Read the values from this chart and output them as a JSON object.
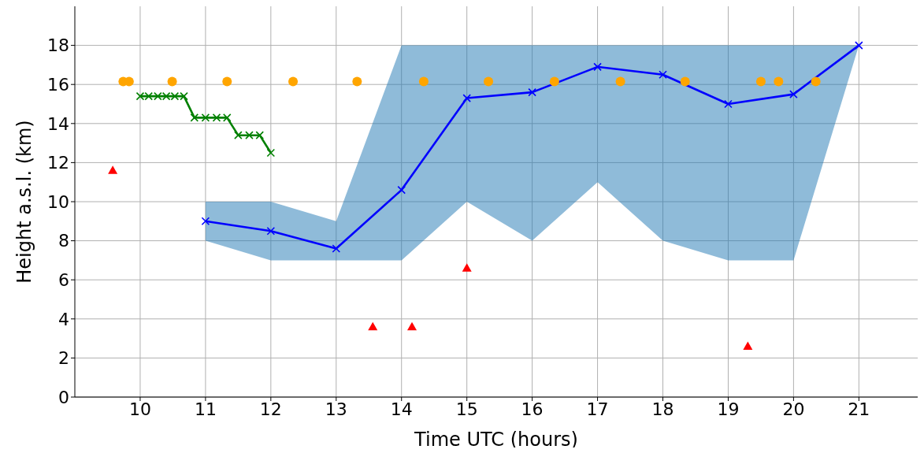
{
  "chart_data": {
    "type": "line",
    "xlabel": "Time UTC (hours)",
    "ylabel": "Height a.s.l. (km)",
    "xlim": [
      9,
      21.9
    ],
    "ylim": [
      0,
      20
    ],
    "xticks": [
      10,
      11,
      12,
      13,
      14,
      15,
      16,
      17,
      18,
      19,
      20,
      21
    ],
    "yticks": [
      0,
      2,
      4,
      6,
      8,
      10,
      12,
      14,
      16,
      18
    ],
    "grid": true,
    "series": [
      {
        "color": "#0000ff",
        "marker": "cross",
        "x": [
          11,
          12,
          13,
          14,
          15,
          16,
          17,
          18,
          19,
          20,
          21
        ],
        "values": [
          9.0,
          8.5,
          7.6,
          10.6,
          15.3,
          15.6,
          16.9,
          16.5,
          15.0,
          15.5,
          18.0
        ],
        "lower": [
          8,
          7,
          7,
          7,
          10,
          8,
          11,
          8,
          7,
          7,
          18
        ],
        "upper": [
          10,
          10,
          9,
          18,
          18,
          18,
          18,
          18,
          18,
          18,
          18
        ]
      },
      {
        "color": "#008000",
        "marker": "cross",
        "x": [
          10,
          10.13,
          10.27,
          10.4,
          10.53,
          10.67,
          10.83,
          11,
          11.17,
          11.33,
          11.5,
          11.67,
          11.83,
          12
        ],
        "values": [
          15.4,
          15.4,
          15.4,
          15.4,
          15.4,
          15.4,
          14.3,
          14.3,
          14.3,
          14.3,
          13.4,
          13.4,
          13.4,
          12.5
        ]
      },
      {
        "type": "scatter",
        "color": "#ffa500",
        "marker": "circle",
        "x": [
          9.74,
          9.83,
          10.49,
          11.33,
          12.34,
          13.32,
          14.34,
          15.33,
          16.34,
          17.35,
          18.34,
          19.5,
          19.77,
          20.34
        ],
        "values": [
          16.15,
          16.15,
          16.15,
          16.15,
          16.15,
          16.15,
          16.15,
          16.15,
          16.15,
          16.15,
          16.15,
          16.15,
          16.15,
          16.15
        ]
      },
      {
        "type": "scatter",
        "color": "#ff0000",
        "marker": "triangle",
        "x": [
          9.58,
          13.56,
          14.16,
          15.0,
          19.3
        ],
        "values": [
          11.6,
          3.6,
          3.6,
          6.6,
          2.6
        ]
      }
    ]
  }
}
